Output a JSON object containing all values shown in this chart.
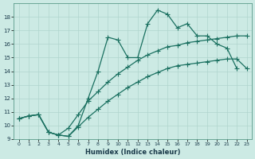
{
  "xlabel": "Humidex (Indice chaleur)",
  "background_color": "#cceae4",
  "grid_color": "#b0d5ce",
  "line_color": "#1a7060",
  "xlim": [
    -0.5,
    23.5
  ],
  "ylim": [
    9,
    19
  ],
  "xticks": [
    0,
    1,
    2,
    3,
    4,
    5,
    6,
    7,
    8,
    9,
    10,
    11,
    12,
    13,
    14,
    15,
    16,
    17,
    18,
    19,
    20,
    21,
    22,
    23
  ],
  "yticks": [
    9,
    10,
    11,
    12,
    13,
    14,
    15,
    16,
    17,
    18
  ],
  "s1x": [
    0,
    1,
    2,
    3,
    4,
    5,
    6,
    7,
    8,
    9,
    10,
    11,
    12,
    13,
    14,
    15,
    16,
    17,
    18,
    19,
    20,
    21,
    22
  ],
  "s1y": [
    10.5,
    10.7,
    10.8,
    9.5,
    9.3,
    9.2,
    10.0,
    12.0,
    14.0,
    16.5,
    16.3,
    15.0,
    15.0,
    17.5,
    18.5,
    18.2,
    17.2,
    17.5,
    16.6,
    16.6,
    16.0,
    15.7,
    14.2
  ],
  "s2x": [
    0,
    1,
    2,
    3,
    4,
    5,
    6,
    7,
    8,
    9,
    10,
    11,
    12,
    13,
    14,
    15,
    16,
    17,
    18,
    19,
    20,
    21,
    22,
    23
  ],
  "s2y": [
    10.5,
    10.7,
    10.8,
    9.5,
    9.3,
    9.8,
    10.8,
    11.8,
    12.5,
    13.2,
    13.8,
    14.3,
    14.8,
    15.2,
    15.5,
    15.8,
    15.9,
    16.1,
    16.2,
    16.3,
    16.4,
    16.5,
    16.6,
    16.6
  ],
  "s3x": [
    0,
    1,
    2,
    3,
    4,
    5,
    6,
    7,
    8,
    9,
    10,
    11,
    12,
    13,
    14,
    15,
    16,
    17,
    18,
    19,
    20,
    21,
    22,
    23
  ],
  "s3y": [
    10.5,
    10.7,
    10.8,
    9.5,
    9.3,
    9.2,
    9.9,
    10.6,
    11.2,
    11.8,
    12.3,
    12.8,
    13.2,
    13.6,
    13.9,
    14.2,
    14.4,
    14.5,
    14.6,
    14.7,
    14.8,
    14.9,
    14.9,
    14.2
  ]
}
